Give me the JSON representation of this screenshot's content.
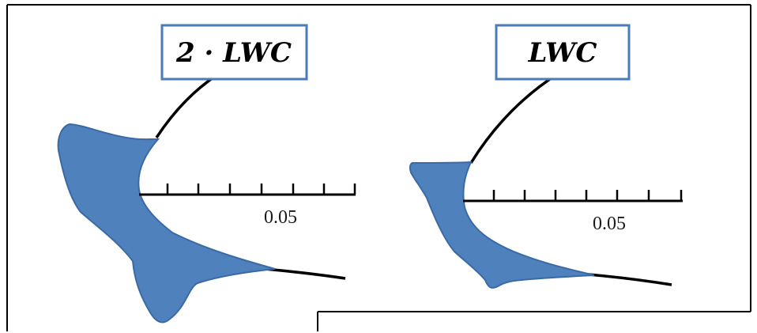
{
  "panels": [
    {
      "label": "2 · LWC",
      "scale_label": "0.05"
    },
    {
      "label": "LWC",
      "scale_label": "0.05"
    }
  ],
  "colors": {
    "ice": "#4f81bd",
    "ice_outline": "#3a6aa5",
    "label_border": "#4a7bbf",
    "line": "#000000"
  }
}
